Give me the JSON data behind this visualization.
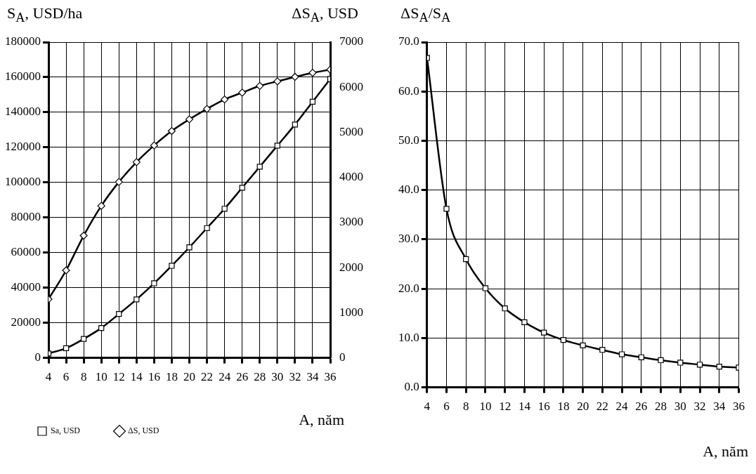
{
  "chart_data": [
    {
      "type": "line",
      "ylabel": "S$_{A}$, USD/ha",
      "y2label": "ΔS$_{A}$, USD",
      "xlabel": "A, năm",
      "x": [
        4,
        6,
        8,
        10,
        12,
        14,
        16,
        18,
        20,
        22,
        24,
        26,
        28,
        30,
        32,
        34,
        36
      ],
      "xlim": [
        4,
        36
      ],
      "xticks": [
        4,
        6,
        8,
        10,
        12,
        14,
        16,
        18,
        20,
        22,
        24,
        26,
        28,
        30,
        32,
        34,
        36
      ],
      "ylim": [
        0,
        180000
      ],
      "yticks": [
        0,
        20000,
        40000,
        60000,
        80000,
        100000,
        120000,
        140000,
        160000,
        180000
      ],
      "y2lim": [
        0,
        7000
      ],
      "y2ticks": [
        0,
        1000,
        2000,
        3000,
        4000,
        5000,
        6000,
        7000
      ],
      "grid": true,
      "legend": "bottom left",
      "line_style": "solid",
      "series": [
        {
          "name": "Sa, USD",
          "color": "#000000",
          "marker": "square",
          "values": [
            2500,
            5500,
            10800,
            17000,
            25000,
            33300,
            42500,
            52500,
            63000,
            74000,
            85000,
            97000,
            109000,
            121000,
            133000,
            146000,
            159000
          ]
        },
        {
          "name": "ΔS, USD",
          "color": "#000000",
          "marker": "diamond",
          "axis": "y2",
          "values": [
            1300,
            1940,
            2710,
            3370,
            3900,
            4340,
            4710,
            5030,
            5290,
            5520,
            5730,
            5880,
            6030,
            6130,
            6230,
            6320,
            6390
          ]
        }
      ]
    },
    {
      "type": "line",
      "ylabel": "ΔS$_{A}$/S$_{A}$",
      "xlabel": "A, năm",
      "x": [
        4,
        6,
        8,
        10,
        12,
        14,
        16,
        18,
        20,
        22,
        24,
        26,
        28,
        30,
        32,
        34,
        36
      ],
      "xlim": [
        4,
        36
      ],
      "xticks": [
        4,
        6,
        8,
        10,
        12,
        14,
        16,
        18,
        20,
        22,
        24,
        26,
        28,
        30,
        32,
        34,
        36
      ],
      "ylim": [
        0,
        70
      ],
      "yticks": [
        {
          "value": 0,
          "label": "0.0"
        },
        {
          "value": 10,
          "label": "10.0"
        },
        {
          "value": 20,
          "label": "20.0"
        },
        {
          "value": 30,
          "label": "30.0"
        },
        {
          "value": 40,
          "label": "40.0"
        },
        {
          "value": 50,
          "label": "50.0"
        },
        {
          "value": 60,
          "label": "60.0"
        },
        {
          "value": 70,
          "label": "70.0"
        }
      ],
      "grid": true,
      "line_style": "solid",
      "series": [
        {
          "color": "#000000",
          "marker": "square",
          "values": [
            66.8,
            36.2,
            26.0,
            20.1,
            16.0,
            13.2,
            11.1,
            9.6,
            8.5,
            7.6,
            6.7,
            6.1,
            5.5,
            5.0,
            4.6,
            4.2,
            4.0
          ]
        }
      ]
    }
  ]
}
